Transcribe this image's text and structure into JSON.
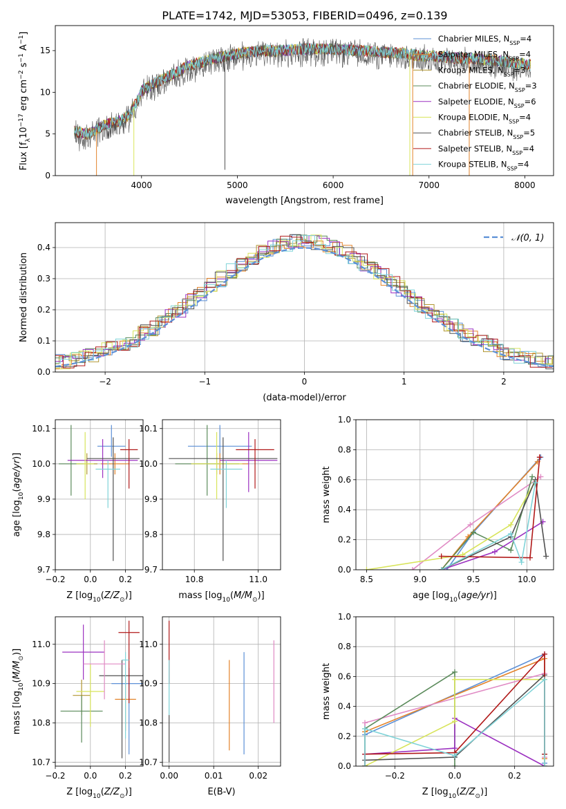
{
  "figure": {
    "title": "PLATE=1742, MJD=53053, FIBERID=0496, z=0.139",
    "colors": {
      "blue": "#5b8fd6",
      "orange": "#e3832a",
      "olive": "#b09530",
      "green": "#5a8a5a",
      "purple": "#9b30c0",
      "yellow": "#d8e45a",
      "dark": "#505050",
      "red": "#b01818",
      "cyan": "#7fd3d8",
      "pink": "#e08ac4",
      "nblue": "#5b8fd6"
    }
  },
  "chart_data": [
    {
      "id": "spectrum",
      "type": "line",
      "xlabel": "wavelength [Angstrom, rest frame]",
      "ylabel": "Flux [f_λ10^-17 erg cm^-2 s^-1 A^-1]",
      "xlim": [
        3100,
        8300
      ],
      "ylim": [
        0,
        18
      ],
      "xticks": [
        4000,
        5000,
        6000,
        7000,
        8000
      ],
      "yticks": [
        0,
        5,
        10,
        15
      ],
      "grid": false,
      "legend_position": "right",
      "continuum": {
        "x": [
          3300,
          3450,
          3600,
          3750,
          3850,
          3950,
          4000,
          4150,
          4300,
          4500,
          4700,
          4900,
          5100,
          5300,
          5500,
          5700,
          5900,
          6100,
          6300,
          6500,
          6700,
          6900,
          7100,
          7300,
          7500,
          7700,
          7900,
          8050
        ],
        "y": [
          5.3,
          5.0,
          6.0,
          6.5,
          7.0,
          8.8,
          10.2,
          11.2,
          12.0,
          13.2,
          13.9,
          14.4,
          14.8,
          15.0,
          15.0,
          15.2,
          15.2,
          15.1,
          15.0,
          14.8,
          14.7,
          14.4,
          14.3,
          14.1,
          14.0,
          13.8,
          13.5,
          13.3
        ]
      },
      "dips": [
        {
          "x": 3530,
          "y": 0.0,
          "series": "Salpeter MILES"
        },
        {
          "x": 3920,
          "y": 0.0,
          "series": "Kroupa ELODIE"
        },
        {
          "x": 4870,
          "y": 0.7,
          "series": "Chabrier STELIB"
        },
        {
          "x": 6800,
          "y": 0.0,
          "series": "Kroupa ELODIE"
        },
        {
          "x": 6830,
          "y": 0.0,
          "series": "Salpeter MILES"
        },
        {
          "x": 7420,
          "y": 0.0,
          "series": "Salpeter MILES"
        }
      ],
      "series": [
        {
          "name": "Chabrier MILES, N_SSP=4",
          "label": "Chabrier MILES, N",
          "sub": "SSP",
          "suffix": "=4",
          "color": "#5b8fd6"
        },
        {
          "name": "Salpeter MILES, N_SSP=4",
          "label": "Salpeter MILES, N",
          "sub": "SSP",
          "suffix": "=4",
          "color": "#e3832a"
        },
        {
          "name": "Kroupa MILES, N_SSP=3",
          "label": "Kroupa MILES, N",
          "sub": "SSP",
          "suffix": "=3",
          "color": "#b09530"
        },
        {
          "name": "Chabrier ELODIE, N_SSP=3",
          "label": "Chabrier ELODIE, N",
          "sub": "SSP",
          "suffix": "=3",
          "color": "#5a8a5a"
        },
        {
          "name": "Salpeter ELODIE, N_SSP=6",
          "label": "Salpeter ELODIE, N",
          "sub": "SSP",
          "suffix": "=6",
          "color": "#9b30c0"
        },
        {
          "name": "Kroupa ELODIE, N_SSP=4",
          "label": "Kroupa ELODIE, N",
          "sub": "SSP",
          "suffix": "=4",
          "color": "#d8e45a"
        },
        {
          "name": "Chabrier STELIB, N_SSP=5",
          "label": "Chabrier STELIB, N",
          "sub": "SSP",
          "suffix": "=5",
          "color": "#505050"
        },
        {
          "name": "Salpeter STELIB, N_SSP=4",
          "label": "Salpeter STELIB, N",
          "sub": "SSP",
          "suffix": "=4",
          "color": "#b01818"
        },
        {
          "name": "Kroupa STELIB, N_SSP=4",
          "label": "Kroupa STELIB, N",
          "sub": "SSP",
          "suffix": "=4",
          "color": "#7fd3d8"
        }
      ]
    },
    {
      "id": "residuals",
      "type": "line",
      "xlabel": "(data-model)/error",
      "ylabel": "Normed distribution",
      "xlim": [
        -2.5,
        2.5
      ],
      "ylim": [
        0,
        0.48
      ],
      "xticks": [
        -2,
        -1,
        0,
        1,
        2
      ],
      "yticks": [
        0.0,
        0.1,
        0.2,
        0.3,
        0.4
      ],
      "grid": true,
      "legend_position": "top-right",
      "gaussian_label": "𝒩(0, 1)",
      "bin_edges_start": -2.5,
      "bin_width": 0.1,
      "base_values": [
        0.03,
        0.033,
        0.037,
        0.042,
        0.047,
        0.055,
        0.06,
        0.069,
        0.08,
        0.09,
        0.1,
        0.11,
        0.128,
        0.14,
        0.16,
        0.175,
        0.195,
        0.21,
        0.23,
        0.25,
        0.265,
        0.285,
        0.3,
        0.32,
        0.34,
        0.355,
        0.37,
        0.38,
        0.395,
        0.41,
        0.415,
        0.42,
        0.425,
        0.42,
        0.415,
        0.41,
        0.4,
        0.395,
        0.385,
        0.38,
        0.37,
        0.355,
        0.34,
        0.32,
        0.3,
        0.285,
        0.27,
        0.25,
        0.235,
        0.22,
        0.2,
        0.18,
        0.165,
        0.15,
        0.13,
        0.115,
        0.1,
        0.09,
        0.078,
        0.07,
        0.06,
        0.052,
        0.046,
        0.04,
        0.035,
        0.031,
        0.028,
        0.025,
        0.022,
        0.02,
        0.018,
        0.016
      ]
    },
    {
      "id": "age_vs_Z",
      "type": "scatter",
      "xlabel": "Z [log10(Z/Z⊙)]",
      "ylabel": "age  [log10(age/yr)]",
      "xlim": [
        -0.2,
        0.3
      ],
      "ylim": [
        9.7,
        10.125
      ],
      "xticks": [
        -0.2,
        0.0,
        0.2
      ],
      "yticks": [
        9.7,
        9.8,
        9.9,
        10.0,
        10.1
      ],
      "grid": true,
      "errorbars": [
        {
          "color": "#5b8fd6",
          "x": 0.12,
          "xerr": 0.08,
          "y": 10.05,
          "yerr": [
            0.03,
            0.06
          ]
        },
        {
          "color": "#e3832a",
          "x": 0.14,
          "xerr": 0.08,
          "y": 10.0,
          "yerr": [
            0.03,
            0.03
          ]
        },
        {
          "color": "#b09530",
          "x": -0.02,
          "xerr": 0.06,
          "y": 10.0,
          "yerr": [
            0.03,
            0.03
          ]
        },
        {
          "color": "#5a8a5a",
          "x": -0.11,
          "xerr": 0.07,
          "y": 10.0,
          "yerr": [
            0.09,
            0.11
          ]
        },
        {
          "color": "#9b30c0",
          "x": 0.07,
          "xerr": 0.2,
          "y": 10.01,
          "yerr": [
            0.05,
            0.06
          ]
        },
        {
          "color": "#d8e45a",
          "x": -0.03,
          "xerr": 0.05,
          "y": 10.0,
          "yerr": [
            0.1,
            0.09
          ]
        },
        {
          "color": "#505050",
          "x": 0.13,
          "xerr": 0.15,
          "y": 10.015,
          "yerr": [
            0.29,
            0.06
          ]
        },
        {
          "color": "#b01818",
          "x": 0.22,
          "xerr": 0.05,
          "y": 10.04,
          "yerr": [
            0.11,
            0.03
          ]
        },
        {
          "color": "#7fd3d8",
          "x": 0.1,
          "xerr": 0.07,
          "y": 9.985,
          "yerr": [
            0.11,
            0.025
          ]
        }
      ]
    },
    {
      "id": "age_vs_mass",
      "type": "scatter",
      "xlabel": "mass [log10(M/M⊙)]",
      "ylabel": "",
      "xlim": [
        10.7,
        11.07
      ],
      "ylim": [
        9.7,
        10.125
      ],
      "xticks": [
        10.8,
        11.0
      ],
      "yticks": [
        9.7,
        9.8,
        9.9,
        10.0,
        10.1
      ],
      "grid": true,
      "errorbars": [
        {
          "color": "#5b8fd6",
          "x": 10.88,
          "xerr": 0.1,
          "y": 10.05,
          "yerr": [
            0.03,
            0.06
          ]
        },
        {
          "color": "#e3832a",
          "x": 10.88,
          "xerr": 0.09,
          "y": 10.0,
          "yerr": [
            0.03,
            0.03
          ]
        },
        {
          "color": "#b09530",
          "x": 10.87,
          "xerr": 0.07,
          "y": 10.0,
          "yerr": [
            0.03,
            0.03
          ]
        },
        {
          "color": "#5a8a5a",
          "x": 10.84,
          "xerr": 0.1,
          "y": 10.0,
          "yerr": [
            0.09,
            0.11
          ]
        },
        {
          "color": "#9b30c0",
          "x": 10.97,
          "xerr": 0.09,
          "y": 10.01,
          "yerr": [
            0.09,
            0.08
          ]
        },
        {
          "color": "#d8e45a",
          "x": 10.87,
          "xerr": 0.08,
          "y": 10.0,
          "yerr": [
            0.1,
            0.09
          ]
        },
        {
          "color": "#505050",
          "x": 10.89,
          "xerr": 0.17,
          "y": 10.015,
          "yerr": [
            0.29,
            0.06
          ]
        },
        {
          "color": "#b01818",
          "x": 10.99,
          "xerr": 0.06,
          "y": 10.04,
          "yerr": [
            0.11,
            0.03
          ]
        },
        {
          "color": "#7fd3d8",
          "x": 10.9,
          "xerr": 0.05,
          "y": 9.985,
          "yerr": [
            0.11,
            0.025
          ]
        }
      ]
    },
    {
      "id": "mass_weight_vs_age",
      "type": "line",
      "xlabel": "age  [log10(age/yr)]",
      "ylabel": "mass weight",
      "xlim": [
        8.4,
        10.25
      ],
      "ylim": [
        0,
        1.0
      ],
      "xticks": [
        8.5,
        9.0,
        9.5,
        10.0
      ],
      "yticks": [
        0.0,
        0.2,
        0.4,
        0.6,
        0.8,
        1.0
      ],
      "grid": true,
      "series": [
        {
          "color": "#5b8fd6",
          "x": [
            9.25,
            9.5,
            10.13
          ],
          "y": [
            0.0,
            0.25,
            0.75
          ]
        },
        {
          "color": "#e3832a",
          "x": [
            9.2,
            9.45,
            10.1
          ],
          "y": [
            0.0,
            0.22,
            0.72
          ]
        },
        {
          "color": "#e08ac4",
          "x": [
            8.93,
            9.47,
            10.13
          ],
          "y": [
            0.0,
            0.3,
            0.62
          ]
        },
        {
          "color": "#5a8a5a",
          "x": [
            9.2,
            9.5,
            9.85,
            10.05
          ],
          "y": [
            0.0,
            0.25,
            0.13,
            0.62
          ]
        },
        {
          "color": "#9b30c0",
          "x": [
            9.2,
            9.7,
            10.15
          ],
          "y": [
            0.0,
            0.12,
            0.32
          ]
        },
        {
          "color": "#d8e45a",
          "x": [
            8.5,
            9.4,
            9.85,
            10.07
          ],
          "y": [
            0.0,
            0.1,
            0.3,
            0.58
          ]
        },
        {
          "color": "#505050",
          "x": [
            9.2,
            9.85,
            10.08,
            10.18
          ],
          "y": [
            0.0,
            0.22,
            0.6,
            0.09
          ]
        },
        {
          "color": "#b01818",
          "x": [
            9.2,
            10.03,
            10.12,
            10.12
          ],
          "y": [
            0.09,
            0.08,
            0.75,
            0.75
          ]
        },
        {
          "color": "#7fd3d8",
          "x": [
            9.2,
            9.85,
            9.95,
            10.08
          ],
          "y": [
            0.0,
            0.24,
            0.05,
            0.58
          ]
        }
      ]
    },
    {
      "id": "mass_vs_Z",
      "type": "scatter",
      "xlabel": "Z [log10(Z/Z⊙)]",
      "ylabel": "mass [log10(M/M⊙)]",
      "xlim": [
        -0.2,
        0.3
      ],
      "ylim": [
        10.69,
        11.07
      ],
      "xticks": [
        -0.2,
        0.0,
        0.2
      ],
      "yticks": [
        10.7,
        10.8,
        10.9,
        11.0
      ],
      "grid": true,
      "errorbars": [
        {
          "color": "#5b8fd6",
          "x": 0.22,
          "xerr": 0.1,
          "y": 10.9,
          "yerr": [
            0.18,
            0.04
          ]
        },
        {
          "color": "#e3832a",
          "x": 0.2,
          "xerr": 0.06,
          "y": 10.86,
          "yerr": [
            0.08,
            0.05
          ]
        },
        {
          "color": "#b09530",
          "x": -0.05,
          "xerr": 0.05,
          "y": 10.87,
          "yerr": [
            0.05,
            0.04
          ]
        },
        {
          "color": "#5a8a5a",
          "x": -0.05,
          "xerr": 0.12,
          "y": 10.83,
          "yerr": [
            0.08,
            0.04
          ]
        },
        {
          "color": "#9b30c0",
          "x": -0.04,
          "xerr": 0.12,
          "y": 10.98,
          "yerr": [
            0.07,
            0.07
          ]
        },
        {
          "color": "#d8e45a",
          "x": 0.0,
          "xerr": 0.08,
          "y": 10.88,
          "yerr": [
            0.09,
            0.07
          ]
        },
        {
          "color": "#505050",
          "x": 0.18,
          "xerr": 0.13,
          "y": 10.92,
          "yerr": [
            0.21,
            0.04
          ]
        },
        {
          "color": "#b01818",
          "x": 0.22,
          "xerr": 0.06,
          "y": 11.03,
          "yerr": [
            0.18,
            0.03
          ]
        },
        {
          "color": "#e08ac4",
          "x": 0.08,
          "xerr": 0.12,
          "y": 10.95,
          "yerr": [
            0.09,
            0.06
          ]
        },
        {
          "color": "#7fd3d8",
          "x": 0.2,
          "xerr": 0.02,
          "y": 10.96,
          "yerr": [
            0.2,
            0.02
          ]
        }
      ]
    },
    {
      "id": "mass_vs_ebv",
      "type": "scatter",
      "xlabel": "E(B-V)",
      "ylabel": "",
      "xlim": [
        -0.0015,
        0.025
      ],
      "ylim": [
        10.69,
        11.07
      ],
      "xticks": [
        0.0,
        0.01,
        0.02
      ],
      "yticks": [
        10.7,
        10.8,
        10.9,
        11.0
      ],
      "grid": true,
      "errorbars": [
        {
          "color": "#b01818",
          "x": 0.0,
          "xerr": 0.0,
          "y": 11.0,
          "yerr": [
            0.1,
            0.06
          ]
        },
        {
          "color": "#505050",
          "x": 0.0,
          "xerr": 0.0,
          "y": 10.75,
          "yerr": [
            0.05,
            0.07
          ]
        },
        {
          "color": "#7fd3d8",
          "x": 0.0,
          "xerr": 0.0,
          "y": 10.89,
          "yerr": [
            0.07,
            0.07
          ]
        },
        {
          "color": "#e3832a",
          "x": 0.0135,
          "xerr": 0.0,
          "y": 10.84,
          "yerr": [
            0.11,
            0.12
          ]
        },
        {
          "color": "#5b8fd6",
          "x": 0.0168,
          "xerr": 0.0,
          "y": 10.85,
          "yerr": [
            0.13,
            0.13
          ]
        },
        {
          "color": "#e08ac4",
          "x": 0.0235,
          "xerr": 0.0,
          "y": 10.9,
          "yerr": [
            0.1,
            0.11
          ]
        }
      ]
    },
    {
      "id": "mass_weight_vs_Z",
      "type": "line",
      "xlabel": "Z [log10(Z/Z⊙)]",
      "ylabel": "mass weight",
      "xlim": [
        -0.33,
        0.33
      ],
      "ylim": [
        0,
        1.0
      ],
      "xticks": [
        -0.2,
        0.0,
        0.2
      ],
      "yticks": [
        0.0,
        0.2,
        0.4,
        0.6,
        0.8,
        1.0
      ],
      "grid": true,
      "series": [
        {
          "color": "#5b8fd6",
          "x": [
            -0.3,
            -0.3,
            0.3,
            0.3
          ],
          "y": [
            0.0,
            0.21,
            0.75,
            0.02
          ]
        },
        {
          "color": "#e3832a",
          "x": [
            -0.3,
            -0.3,
            0.3,
            0.3
          ],
          "y": [
            0.0,
            0.23,
            0.72,
            0.05
          ]
        },
        {
          "color": "#e08ac4",
          "x": [
            -0.3,
            -0.3,
            0.3,
            0.3
          ],
          "y": [
            0.0,
            0.29,
            0.62,
            0.06
          ]
        },
        {
          "color": "#5a8a5a",
          "x": [
            -0.3,
            -0.3,
            0.0,
            0.0
          ],
          "y": [
            0.0,
            0.25,
            0.63,
            0.0
          ]
        },
        {
          "color": "#9b30c0",
          "x": [
            -0.3,
            -0.3,
            0.0,
            0.0,
            0.3,
            0.3
          ],
          "y": [
            0.0,
            0.08,
            0.12,
            0.32,
            0.0,
            0.0
          ]
        },
        {
          "color": "#d8e45a",
          "x": [
            -0.3,
            0.0,
            0.0,
            0.3,
            0.3
          ],
          "y": [
            0.0,
            0.3,
            0.58,
            0.58,
            0.0
          ]
        },
        {
          "color": "#505050",
          "x": [
            -0.3,
            -0.3,
            0.0,
            0.3,
            0.3
          ],
          "y": [
            0.0,
            0.04,
            0.06,
            0.61,
            0.08
          ]
        },
        {
          "color": "#b01818",
          "x": [
            -0.3,
            -0.3,
            0.0,
            0.3,
            0.3
          ],
          "y": [
            0.0,
            0.08,
            0.09,
            0.75,
            0.08
          ]
        },
        {
          "color": "#7fd3d8",
          "x": [
            -0.3,
            -0.3,
            0.0,
            0.3,
            0.3
          ],
          "y": [
            0.0,
            0.25,
            0.07,
            0.58,
            0.0
          ]
        }
      ]
    }
  ]
}
